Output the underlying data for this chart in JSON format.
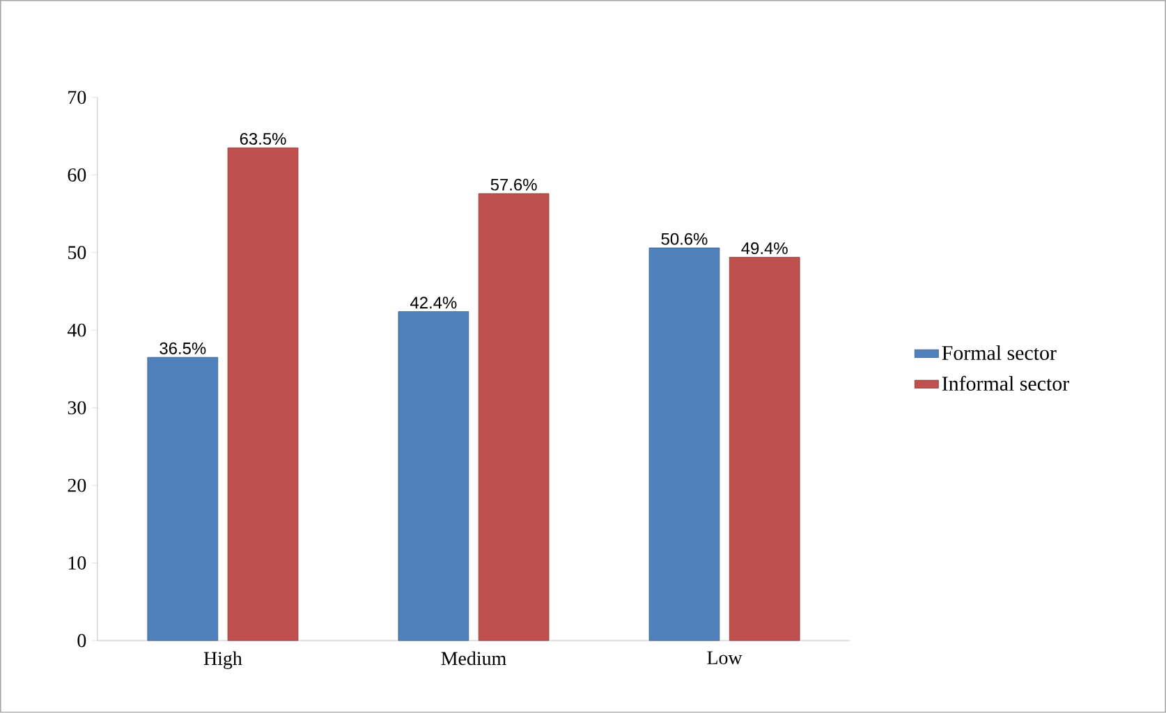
{
  "chart_data": {
    "type": "bar",
    "categories": [
      "High",
      "Medium",
      "Low"
    ],
    "series": [
      {
        "name": "Formal sector",
        "color": "#4f81bd",
        "values": [
          36.5,
          42.4,
          50.6
        ],
        "value_labels": [
          "36.5%",
          "42.4%",
          "50.6%"
        ]
      },
      {
        "name": "Informal sector",
        "color": "#c0504d",
        "values": [
          63.5,
          57.6,
          49.4
        ],
        "value_labels": [
          "63.5%",
          "57.6%",
          "49.4%"
        ]
      }
    ],
    "ylim": [
      0,
      70
    ],
    "yticks": [
      0,
      10,
      20,
      30,
      40,
      50,
      60,
      70
    ],
    "grid": false,
    "legend": "right"
  }
}
